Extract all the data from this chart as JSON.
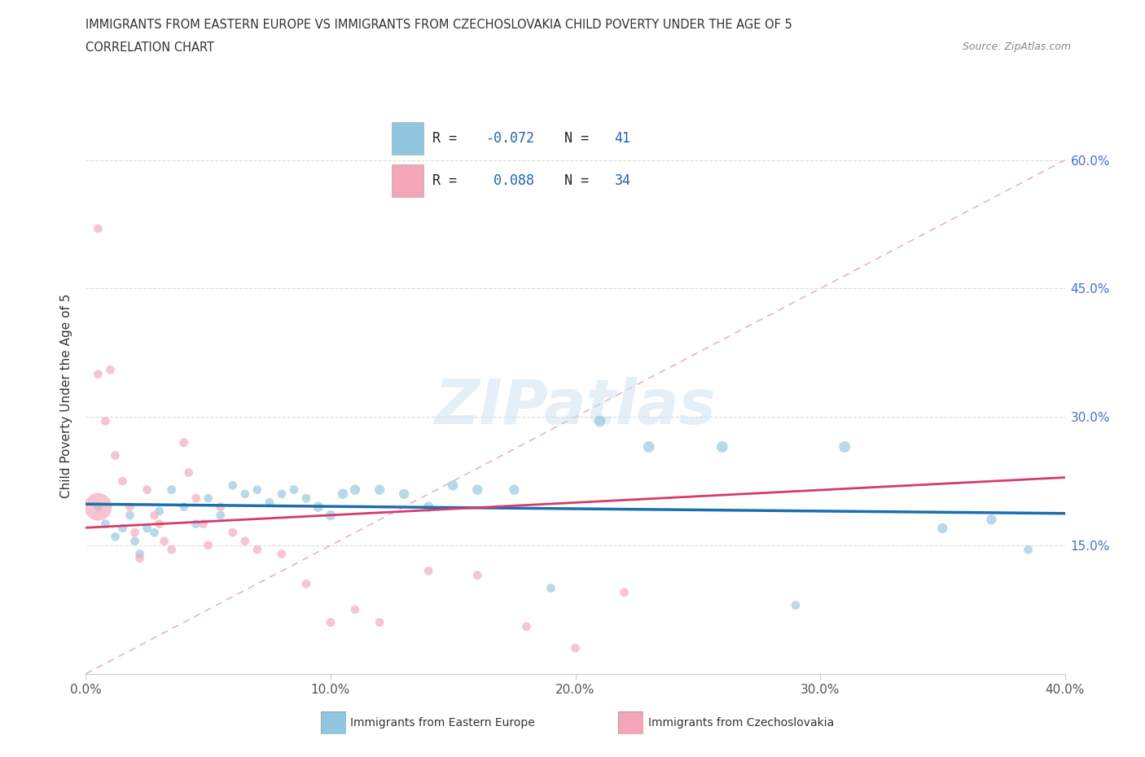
{
  "title_line1": "IMMIGRANTS FROM EASTERN EUROPE VS IMMIGRANTS FROM CZECHOSLOVAKIA CHILD POVERTY UNDER THE AGE OF 5",
  "title_line2": "CORRELATION CHART",
  "source": "Source: ZipAtlas.com",
  "ylabel": "Child Poverty Under the Age of 5",
  "x_min": 0.0,
  "x_max": 0.4,
  "y_min": 0.0,
  "y_max": 0.65,
  "x_ticks": [
    0.0,
    0.1,
    0.2,
    0.3,
    0.4
  ],
  "x_tick_labels": [
    "0.0%",
    "10.0%",
    "20.0%",
    "30.0%",
    "40.0%"
  ],
  "y_ticks": [
    0.15,
    0.3,
    0.45,
    0.6
  ],
  "y_tick_labels": [
    "15.0%",
    "30.0%",
    "45.0%",
    "60.0%"
  ],
  "color_blue": "#92c5de",
  "color_pink": "#f4a6b8",
  "color_blue_line": "#1a6faf",
  "color_pink_line": "#d63b6a",
  "color_diag": "#e8a0b0",
  "series1_label": "Immigrants from Eastern Europe",
  "series2_label": "Immigrants from Czechoslovakia",
  "blue_x": [
    0.005,
    0.008,
    0.012,
    0.015,
    0.018,
    0.02,
    0.022,
    0.025,
    0.028,
    0.03,
    0.035,
    0.04,
    0.045,
    0.05,
    0.055,
    0.06,
    0.065,
    0.07,
    0.075,
    0.08,
    0.085,
    0.09,
    0.095,
    0.1,
    0.105,
    0.11,
    0.12,
    0.13,
    0.14,
    0.15,
    0.16,
    0.175,
    0.19,
    0.21,
    0.23,
    0.26,
    0.29,
    0.31,
    0.35,
    0.37,
    0.385
  ],
  "blue_y": [
    0.195,
    0.175,
    0.16,
    0.17,
    0.185,
    0.155,
    0.14,
    0.17,
    0.165,
    0.19,
    0.215,
    0.195,
    0.175,
    0.205,
    0.185,
    0.22,
    0.21,
    0.215,
    0.2,
    0.21,
    0.215,
    0.205,
    0.195,
    0.185,
    0.21,
    0.215,
    0.215,
    0.21,
    0.195,
    0.22,
    0.215,
    0.215,
    0.1,
    0.295,
    0.265,
    0.265,
    0.08,
    0.265,
    0.17,
    0.18,
    0.145
  ],
  "blue_sizes": [
    60,
    60,
    60,
    60,
    60,
    60,
    60,
    60,
    60,
    60,
    60,
    60,
    60,
    60,
    60,
    60,
    60,
    60,
    60,
    60,
    60,
    60,
    80,
    80,
    80,
    80,
    80,
    80,
    80,
    80,
    80,
    80,
    60,
    100,
    100,
    100,
    60,
    100,
    80,
    80,
    60
  ],
  "pink_x": [
    0.005,
    0.005,
    0.008,
    0.01,
    0.012,
    0.015,
    0.018,
    0.02,
    0.022,
    0.025,
    0.028,
    0.03,
    0.032,
    0.035,
    0.04,
    0.042,
    0.045,
    0.048,
    0.05,
    0.055,
    0.06,
    0.065,
    0.07,
    0.08,
    0.09,
    0.1,
    0.11,
    0.12,
    0.14,
    0.16,
    0.18,
    0.2,
    0.22,
    0.005
  ],
  "pink_y": [
    0.52,
    0.35,
    0.295,
    0.355,
    0.255,
    0.225,
    0.195,
    0.165,
    0.135,
    0.215,
    0.185,
    0.175,
    0.155,
    0.145,
    0.27,
    0.235,
    0.205,
    0.175,
    0.15,
    0.195,
    0.165,
    0.155,
    0.145,
    0.14,
    0.105,
    0.06,
    0.075,
    0.06,
    0.12,
    0.115,
    0.055,
    0.03,
    0.095,
    0.195
  ],
  "pink_sizes": [
    60,
    60,
    60,
    60,
    60,
    60,
    60,
    60,
    60,
    60,
    60,
    60,
    60,
    60,
    60,
    60,
    60,
    60,
    60,
    60,
    60,
    60,
    60,
    60,
    60,
    60,
    60,
    60,
    60,
    60,
    60,
    60,
    60,
    600
  ],
  "watermark": "ZIPatlas"
}
